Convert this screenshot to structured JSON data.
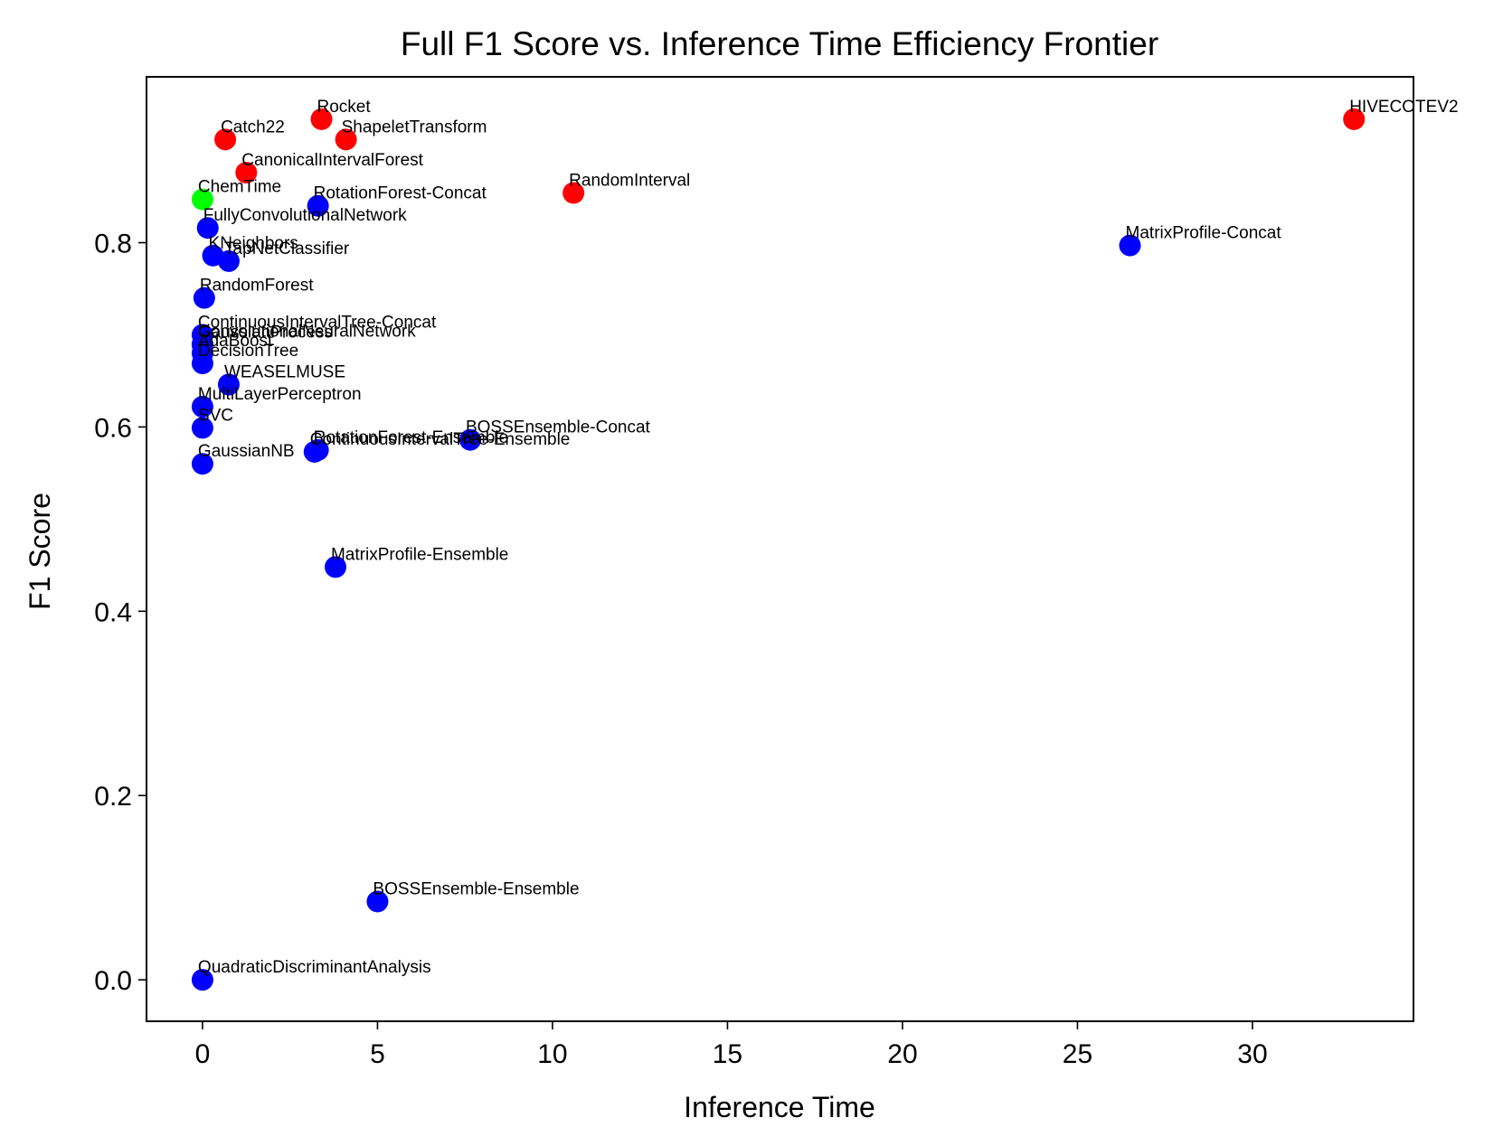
{
  "chart_data": {
    "type": "scatter",
    "title": "Full F1 Score vs. Inference Time Efficiency Frontier",
    "xlabel": "Inference Time",
    "ylabel": "F1 Score",
    "xlim": [
      -1.6,
      34.6
    ],
    "ylim": [
      -0.045,
      0.98
    ],
    "xticks": [
      0,
      5,
      10,
      15,
      20,
      25,
      30
    ],
    "yticks": [
      0.0,
      0.2,
      0.4,
      0.6,
      0.8
    ],
    "ytick_labels": [
      "0.0",
      "0.2",
      "0.4",
      "0.6",
      "0.8"
    ],
    "grid": false,
    "colors": {
      "red": "#ff0000",
      "blue": "#0000ff",
      "green": "#00ff00"
    },
    "points": [
      {
        "label": "Rocket",
        "x": 3.4,
        "y": 0.934,
        "color": "red"
      },
      {
        "label": "HIVECOTEV2",
        "x": 32.9,
        "y": 0.934,
        "color": "red"
      },
      {
        "label": "ShapeletTransform",
        "x": 4.1,
        "y": 0.912,
        "color": "red"
      },
      {
        "label": "Catch22",
        "x": 0.65,
        "y": 0.912,
        "color": "red"
      },
      {
        "label": "CanonicalIntervalForest",
        "x": 1.25,
        "y": 0.876,
        "color": "red"
      },
      {
        "label": "RandomInterval",
        "x": 10.6,
        "y": 0.854,
        "color": "red"
      },
      {
        "label": "ChemTime",
        "x": 0.0,
        "y": 0.847,
        "color": "green"
      },
      {
        "label": "RotationForest-Concat",
        "x": 3.3,
        "y": 0.84,
        "color": "blue"
      },
      {
        "label": "FullyConvolutionalNetwork",
        "x": 0.15,
        "y": 0.816,
        "color": "blue"
      },
      {
        "label": "MatrixProfile-Concat",
        "x": 26.5,
        "y": 0.797,
        "color": "blue"
      },
      {
        "label": "KNeighbors",
        "x": 0.3,
        "y": 0.786,
        "color": "blue"
      },
      {
        "label": "TapNetClassifier",
        "x": 0.75,
        "y": 0.78,
        "color": "blue"
      },
      {
        "label": "RandomForest",
        "x": 0.05,
        "y": 0.74,
        "color": "blue"
      },
      {
        "label": "ContinuousIntervalTree-Concat",
        "x": 0.0,
        "y": 0.7,
        "color": "blue"
      },
      {
        "label": "ConvolutionalNeuralNetwork",
        "x": 0.0,
        "y": 0.69,
        "color": "blue"
      },
      {
        "label": "GaussianProcess",
        "x": 0.0,
        "y": 0.689,
        "color": "blue"
      },
      {
        "label": "AdaBoost",
        "x": 0.0,
        "y": 0.68,
        "color": "blue"
      },
      {
        "label": "DecisionTree",
        "x": 0.0,
        "y": 0.669,
        "color": "blue"
      },
      {
        "label": "WEASELMUSE",
        "x": 0.75,
        "y": 0.646,
        "color": "blue"
      },
      {
        "label": "MultiLayerPerceptron",
        "x": 0.0,
        "y": 0.622,
        "color": "blue"
      },
      {
        "label": "SVC",
        "x": 0.0,
        "y": 0.599,
        "color": "blue"
      },
      {
        "label": "BOSSEnsemble-Concat",
        "x": 7.65,
        "y": 0.586,
        "color": "blue"
      },
      {
        "label": "RotationForest-Ensemble",
        "x": 3.3,
        "y": 0.575,
        "color": "blue"
      },
      {
        "label": "ContinuousIntervalTree-Ensemble",
        "x": 3.2,
        "y": 0.573,
        "color": "blue"
      },
      {
        "label": "GaussianNB",
        "x": 0.0,
        "y": 0.56,
        "color": "blue"
      },
      {
        "label": "MatrixProfile-Ensemble",
        "x": 3.8,
        "y": 0.448,
        "color": "blue"
      },
      {
        "label": "BOSSEnsemble-Ensemble",
        "x": 5.0,
        "y": 0.085,
        "color": "blue"
      },
      {
        "label": "QuadraticDiscriminantAnalysis",
        "x": 0.0,
        "y": 0.0,
        "color": "blue"
      }
    ]
  }
}
